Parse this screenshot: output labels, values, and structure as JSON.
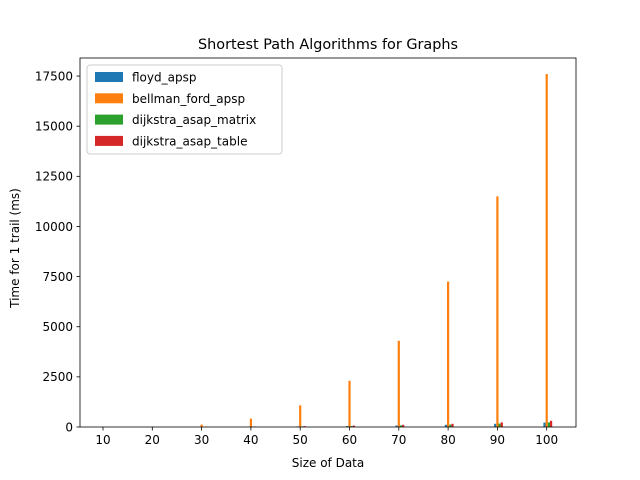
{
  "chart_data": {
    "type": "bar",
    "title": "Shortest Path Algorithms for Graphs",
    "xlabel": "Size of Data",
    "ylabel": "Time for 1 trail (ms)",
    "categories": [
      "10",
      "20",
      "30",
      "40",
      "50",
      "60",
      "70",
      "80",
      "90",
      "100"
    ],
    "ylim": [
      0,
      18400
    ],
    "yticks": [
      0,
      2500,
      5000,
      7500,
      10000,
      12500,
      15000,
      17500
    ],
    "ytick_labels": [
      "0",
      "2500",
      "5000",
      "7500",
      "10000",
      "12500",
      "15000",
      "17500"
    ],
    "legend_position": "top-left",
    "grid": false,
    "series": [
      {
        "name": "floyd_apsp",
        "color": "#1f77b4",
        "values": [
          0.5,
          2,
          6,
          14,
          30,
          50,
          75,
          110,
          160,
          220
        ]
      },
      {
        "name": "bellman_ford_apsp",
        "color": "#ff7f0e",
        "values": [
          3,
          20,
          120,
          420,
          1080,
          2300,
          4300,
          7250,
          11500,
          17600
        ]
      },
      {
        "name": "dijkstra_asap_matrix",
        "color": "#2ca02c",
        "values": [
          0.5,
          3,
          8,
          16,
          30,
          50,
          80,
          120,
          170,
          230
        ]
      },
      {
        "name": "dijkstra_asap_table",
        "color": "#d62728",
        "values": [
          1,
          4,
          12,
          25,
          45,
          70,
          110,
          160,
          230,
          310
        ]
      }
    ]
  }
}
